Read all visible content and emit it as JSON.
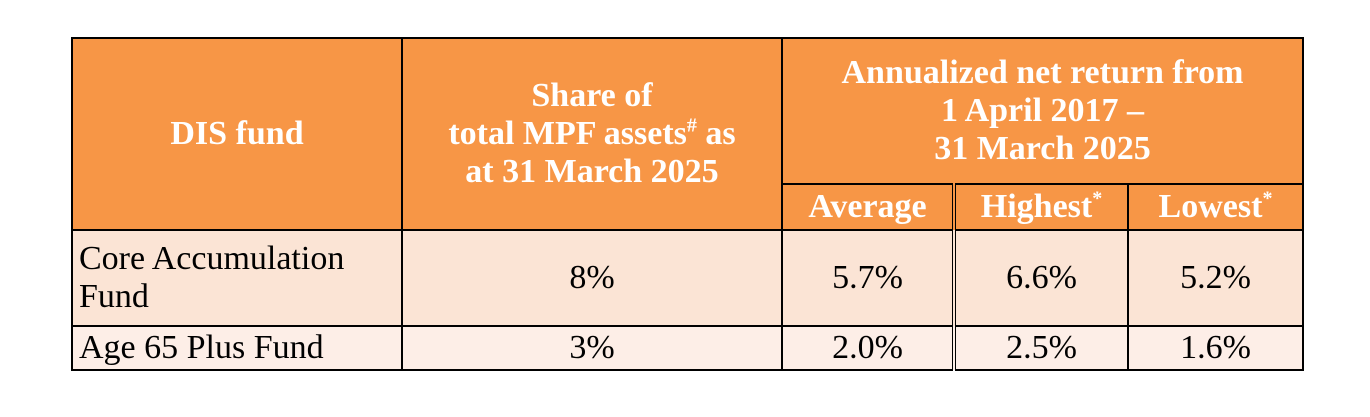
{
  "table": {
    "headers": {
      "fund": "DIS fund",
      "share_line1": "Share of",
      "share_line2": "total MPF assets",
      "share_sup": "#",
      "share_line2_tail": " as",
      "share_line3": "at 31 March 2025",
      "return_line1": "Annualized net return from",
      "return_line2": "1 April 2017 –",
      "return_line3": "31 March 2025",
      "average": "Average",
      "highest": "Highest",
      "highest_sup": "*",
      "lowest": "Lowest",
      "lowest_sup": "*"
    },
    "rows": [
      {
        "fund_line1": "Core Accumulation",
        "fund_line2": "Fund",
        "share": "8%",
        "average": "5.7%",
        "highest": "6.6%",
        "lowest": "5.2%"
      },
      {
        "fund_line1": "Age 65 Plus Fund",
        "share": "3%",
        "average": "2.0%",
        "highest": "2.5%",
        "lowest": "1.6%"
      }
    ]
  },
  "colors": {
    "header_bg": "#f79646",
    "header_text": "#ffffff",
    "row1_bg": "#fbe4d5",
    "row2_bg": "#fdeee7"
  }
}
